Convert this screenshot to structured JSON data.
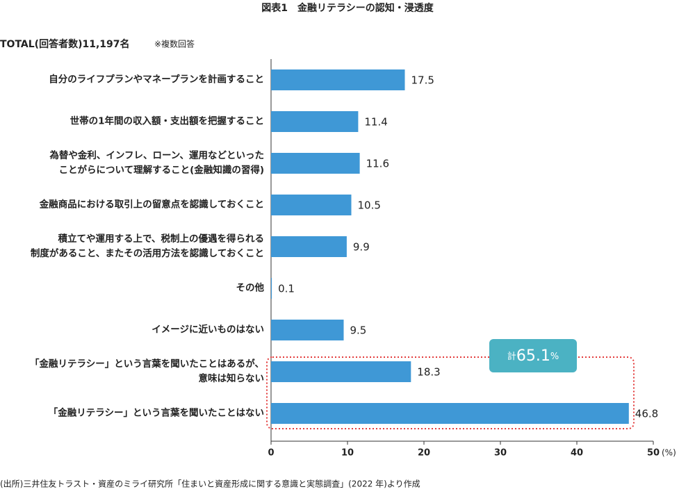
{
  "chart_data": {
    "type": "hbar",
    "title": "図表1　金融リテラシーの認知・浸透度",
    "subtitle": "TOTAL(回答者数)11,197名",
    "note": "※複数回答",
    "categories": [
      "自分のライフプランやマネープランを計画すること",
      "世帯の1年間の収入額・支出額を把握すること",
      "為替や金利、インフレ、ローン、運用などといった\nことがらについて理解すること(金融知識の習得)",
      "金融商品における取引上の留意点を認識しておくこと",
      "積立てや運用する上で、税制上の優遇を得られる\n制度があること、またその活用方法を認識しておくこと",
      "その他",
      "イメージに近いものはない",
      "「金融リテラシー」という言葉を聞いたことはあるが、\n意味は知らない",
      "「金融リテラシー」という言葉を聞いたことはない"
    ],
    "values": [
      17.5,
      11.4,
      11.6,
      10.5,
      9.9,
      0.1,
      9.5,
      18.3,
      46.8
    ],
    "color": "#3f98d6",
    "xlim": [
      0,
      50
    ],
    "xticks": [
      0,
      10,
      20,
      30,
      40,
      50
    ],
    "xlabel": "(%)",
    "annotation": {
      "prefix": "計",
      "value": 65.1,
      "suffix": "%",
      "color": "#4bb2c3",
      "outline_color": "#e33b3b"
    },
    "source": "(出所)三井住友トラスト・資産のミライ研究所「住まいと資産形成に関する意識と実態調査」(2022 年)より作成"
  }
}
